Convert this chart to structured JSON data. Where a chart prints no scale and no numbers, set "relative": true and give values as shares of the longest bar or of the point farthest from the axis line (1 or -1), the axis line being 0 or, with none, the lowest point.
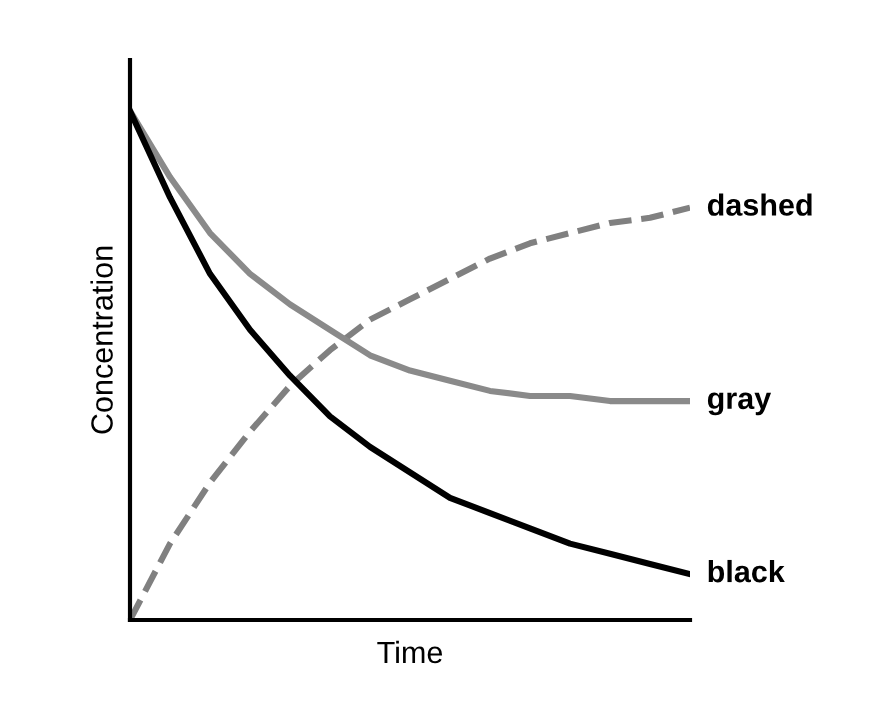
{
  "chart_data": {
    "type": "line",
    "relative": true,
    "xlabel": "Time",
    "ylabel": "Concentration",
    "grid": false,
    "legend": false,
    "marker": "none",
    "categories": [
      null,
      null,
      null,
      null,
      null,
      null,
      null,
      null,
      null,
      null,
      null,
      null,
      null,
      null,
      null
    ],
    "series": [
      {
        "name": "dashed",
        "color": "#808080",
        "line_style": "dashed",
        "values": [
          0,
          0.15,
          0.27,
          0.37,
          0.46,
          0.53,
          0.59,
          0.63,
          0.67,
          0.71,
          0.74,
          0.76,
          0.78,
          0.79,
          0.81
        ]
      },
      {
        "name": "gray",
        "color": "#8a8a8a",
        "line_style": "solid",
        "values": [
          1,
          0.87,
          0.76,
          0.68,
          0.62,
          0.57,
          0.52,
          0.49,
          0.47,
          0.45,
          0.44,
          0.44,
          0.43,
          0.43,
          0.43
        ]
      },
      {
        "name": "black",
        "color": "#000000",
        "line_style": "solid",
        "values": [
          1,
          0.83,
          0.68,
          0.57,
          0.48,
          0.4,
          0.34,
          0.29,
          0.24,
          0.21,
          0.18,
          0.15,
          0.13,
          0.11,
          0.09
        ]
      }
    ]
  }
}
